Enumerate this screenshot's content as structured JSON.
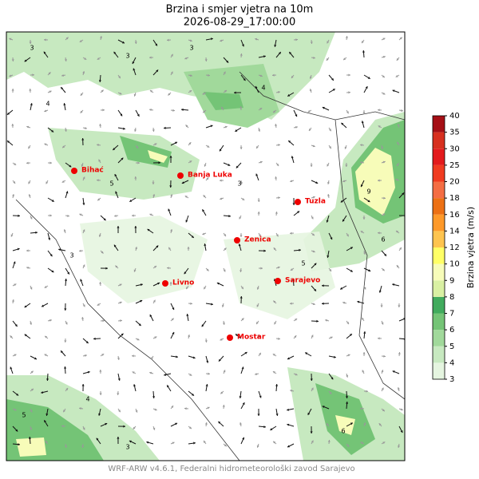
{
  "title": "Brzina i smjer vjetra na 10m",
  "subtitle": "2026-08-29_17:00:00",
  "cities": [
    "Bihać",
    "Banja Luka",
    "Tuzla",
    "Zenica",
    "Livno",
    "Sarajevo",
    "Mostar"
  ],
  "colorbar": {
    "label": "Brzina vjetra (m/s)",
    "ticks": [
      3,
      4,
      5,
      6,
      7,
      8,
      9,
      10,
      12,
      14,
      16,
      18,
      20,
      25,
      30,
      35,
      40
    ],
    "colors": [
      "#e5f5e0",
      "#c7e9c0",
      "#a1d99b",
      "#74c476",
      "#41ab5d",
      "#d9f0a3",
      "#f7fcb9",
      "#ffff66",
      "#fec44f",
      "#fe9929",
      "#ec7014",
      "#f46d43",
      "#f03b20",
      "#e31a1c",
      "#d7301f",
      "#a50f15"
    ]
  },
  "contour_labels": [
    3,
    3,
    4,
    5,
    3,
    4,
    3,
    5,
    6,
    3,
    4,
    5,
    3,
    9,
    6
  ],
  "footer": "WRF-ARW v4.6.1, Federalni hidrometeorološki zavod Sarajevo"
}
